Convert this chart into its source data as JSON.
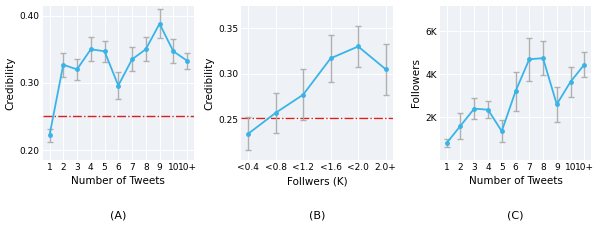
{
  "panel_A": {
    "x_labels": [
      "1",
      "2",
      "3",
      "4",
      "5",
      "6",
      "7",
      "8",
      "9",
      "10",
      "10+"
    ],
    "y": [
      0.222,
      0.327,
      0.32,
      0.35,
      0.347,
      0.296,
      0.335,
      0.35,
      0.388,
      0.347,
      0.333
    ],
    "yerr_lo": [
      0.01,
      0.018,
      0.015,
      0.018,
      0.016,
      0.02,
      0.018,
      0.018,
      0.022,
      0.018,
      0.012
    ],
    "yerr_hi": [
      0.01,
      0.018,
      0.015,
      0.018,
      0.016,
      0.02,
      0.018,
      0.018,
      0.022,
      0.018,
      0.012
    ],
    "mean_line": 0.251,
    "xlabel": "Number of Tweets",
    "ylabel": "Credibility",
    "label": "(A)",
    "ylim": [
      0.185,
      0.415
    ],
    "yticks": [
      0.2,
      0.3,
      0.4
    ]
  },
  "panel_B": {
    "x_labels": [
      "<0.4",
      "<0.8",
      "<1.2",
      "<1.6",
      "<2.0",
      "2.0+"
    ],
    "y": [
      0.234,
      0.257,
      0.277,
      0.317,
      0.33,
      0.305
    ],
    "yerr_lo": [
      0.018,
      0.022,
      0.028,
      0.026,
      0.023,
      0.028
    ],
    "yerr_hi": [
      0.018,
      0.022,
      0.028,
      0.026,
      0.023,
      0.028
    ],
    "mean_line": 0.251,
    "xlabel": "Follwers (K)",
    "ylabel": "Credibility",
    "label": "(B)",
    "ylim": [
      0.205,
      0.375
    ],
    "yticks": [
      0.25,
      0.3,
      0.35
    ]
  },
  "panel_C": {
    "x_labels": [
      "1",
      "2",
      "3",
      "4",
      "5",
      "6",
      "7",
      "8",
      "9",
      "10",
      "10+"
    ],
    "y": [
      800,
      1600,
      2400,
      2350,
      1350,
      3200,
      4700,
      4750,
      2600,
      3650,
      4450
    ],
    "yerr_lo": [
      200,
      600,
      500,
      400,
      500,
      900,
      1000,
      800,
      800,
      700,
      600
    ],
    "yerr_hi": [
      200,
      600,
      500,
      400,
      500,
      900,
      1000,
      800,
      800,
      700,
      600
    ],
    "xlabel": "Number of Tweets",
    "ylabel": "Followers",
    "label": "(C)",
    "ylim": [
      0,
      7200
    ],
    "yticks": [
      2000,
      4000,
      6000
    ],
    "ytick_labels": [
      "2K",
      "4K",
      "6K"
    ]
  },
  "line_color": "#3ab4e8",
  "mean_line_color": "#d92020",
  "error_color": "#b0b0b0",
  "bg_color": "#eef2f7",
  "grid_color": "white",
  "label_fontsize": 7.5,
  "tick_fontsize": 6.5,
  "caption_fontsize": 8
}
